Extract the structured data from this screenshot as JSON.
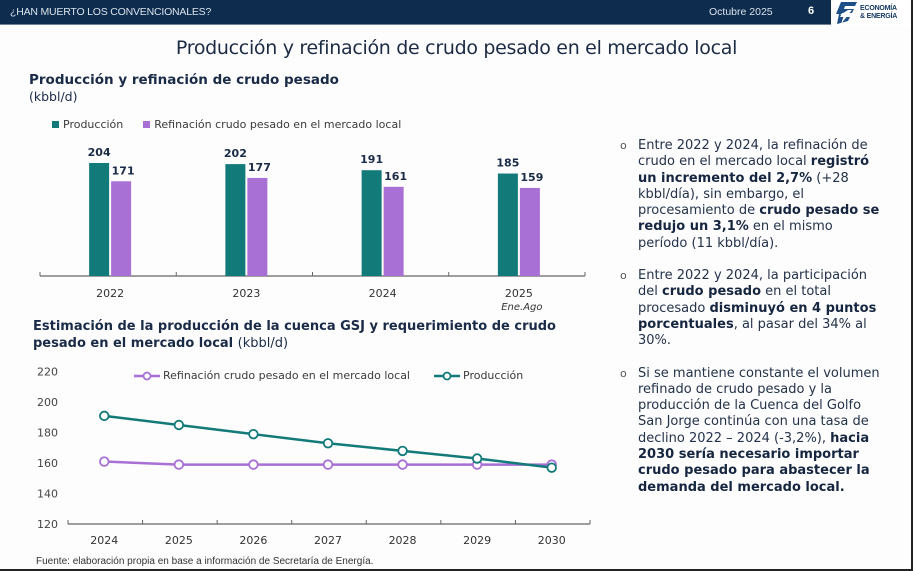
{
  "header": {
    "deck_title": "¿HAN MUERTO LOS CONVENCIONALES?",
    "date": "Octubre 2025",
    "page_number": "6",
    "logo_line1": "ECONOMÍA",
    "logo_line2": "& ENERGÍA",
    "logo_icon": "lightning-bolt-icon"
  },
  "main_title": "Producción y refinación de crudo pesado en el mercado local",
  "colors": {
    "navy": "#0e2c4e",
    "production": "#137a7a",
    "refining": "#a86fd4",
    "text": "#1a2b47"
  },
  "chart_data": [
    {
      "type": "bar",
      "title": "Producción y refinación de crudo pesado",
      "unit": "(kbbl/d)",
      "categories": [
        "2022",
        "2023",
        "2024",
        "2025"
      ],
      "category_sublabels": [
        "",
        "",
        "",
        "Ene.Ago"
      ],
      "series": [
        {
          "name": "Producción",
          "color": "#137a7a",
          "values": [
            204,
            202,
            191,
            185
          ]
        },
        {
          "name": "Refinación crudo pesado en el mercado local",
          "color": "#a86fd4",
          "values": [
            171,
            177,
            161,
            159
          ]
        }
      ],
      "ylim": [
        0,
        215
      ],
      "grid": false,
      "legend": "top-left",
      "data_labels": true
    },
    {
      "type": "line",
      "title": "Estimación de la producción de la cuenca GSJ y requerimiento de crudo pesado en el mercado local",
      "unit": "(kbbl/d)",
      "x": [
        "2024",
        "2025",
        "2026",
        "2027",
        "2028",
        "2029",
        "2030"
      ],
      "series": [
        {
          "name": "Refinación crudo pesado en el mercado local",
          "color": "#a86fd4",
          "values": [
            161,
            159,
            159,
            159,
            159,
            159,
            159
          ]
        },
        {
          "name": "Producción",
          "color": "#137a7a",
          "values": [
            191,
            185,
            179,
            173,
            168,
            163,
            157
          ]
        }
      ],
      "ylim": [
        120,
        220
      ],
      "yticks": [
        "120",
        "140",
        "160",
        "180",
        "200",
        "220"
      ],
      "grid": false,
      "legend": "top-center"
    }
  ],
  "chart2_title_bold": "Estimación de la producción de la cuenca GSJ y requerimiento de crudo pesado en el mercado local",
  "chart2_unit": "(kbbl/d)",
  "bullets": [
    {
      "parts": [
        {
          "t": "Entre 2022 y 2024, la refinación de crudo en el mercado local ",
          "b": false
        },
        {
          "t": "registró un incremento del 2,7%",
          "b": true
        },
        {
          "t": " (+28 kbbl/día), sin embargo, el procesamiento de ",
          "b": false
        },
        {
          "t": "crudo pesado se redujo un 3,1%",
          "b": true
        },
        {
          "t": " en el mismo período (11 kbbl/día).",
          "b": false
        }
      ]
    },
    {
      "parts": [
        {
          "t": "Entre 2022 y 2024, la participación del ",
          "b": false
        },
        {
          "t": "crudo pesado",
          "b": true
        },
        {
          "t": " en el total procesado ",
          "b": false
        },
        {
          "t": "disminuyó en 4 puntos porcentuales",
          "b": true
        },
        {
          "t": ", al pasar del 34% al 30%.",
          "b": false
        }
      ]
    },
    {
      "parts": [
        {
          "t": "Si se mantiene constante el volumen refinado de crudo pesado y la producción de la Cuenca del Golfo San Jorge continúa con una tasa de declino 2022 – 2024 (-3,2%), ",
          "b": false
        },
        {
          "t": "hacia 2030 sería necesario importar crudo pesado para abastecer la demanda del mercado local.",
          "b": true
        }
      ]
    }
  ],
  "source": "Fuente: elaboración propia en base a información de Secretaría de Energía."
}
